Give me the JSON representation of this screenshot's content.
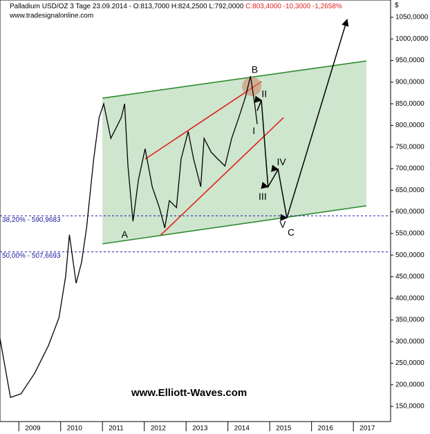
{
  "chart_data": {
    "type": "line",
    "title": "Palladium USD/OZ 3 Tage  23.09.2014 - O:813,7000 H:824,2500 L:792,0000",
    "change_text": "C:803,4000 -10,3000 -1,2658%",
    "source": "www.tradesignalonline.com",
    "unit": "$",
    "watermark": "www.Elliott-Waves.com",
    "x": [
      2008.55,
      2008.8,
      2009.05,
      2009.38,
      2009.71,
      2009.96,
      2010.12,
      2010.21,
      2010.37,
      2010.5,
      2010.62,
      2010.79,
      2010.92,
      2011.03,
      2011.2,
      2011.45,
      2011.53,
      2011.61,
      2011.73,
      2011.86,
      2012.02,
      2012.19,
      2012.36,
      2012.49,
      2012.6,
      2012.77,
      2012.88,
      2013.05,
      2013.18,
      2013.35,
      2013.43,
      2013.6,
      2013.76,
      2013.93,
      2014.09,
      2014.26,
      2014.42,
      2014.54,
      2014.64,
      2014.7
    ],
    "values": [
      307,
      171,
      179,
      227,
      291,
      355,
      451,
      547,
      435,
      483,
      563,
      722,
      818,
      850,
      770,
      818,
      850,
      706,
      578,
      674,
      746,
      658,
      610,
      563,
      626,
      610,
      722,
      786,
      722,
      658,
      770,
      738,
      722,
      706,
      770,
      818,
      866,
      914,
      850,
      803
    ],
    "color": "#000000",
    "xlim": [
      2008.55,
      2017.89
    ],
    "xticks": [
      2009,
      2010,
      2011,
      2012,
      2013,
      2014,
      2015,
      2016,
      2017
    ],
    "ylim": [
      115,
      1090
    ],
    "yticks": [
      {
        "value": 150,
        "label": "150,0000"
      },
      {
        "value": 200,
        "label": "200,0000"
      },
      {
        "value": 250,
        "label": "250,0000"
      },
      {
        "value": 300,
        "label": "300,0000"
      },
      {
        "value": 350,
        "label": "350,0000"
      },
      {
        "value": 400,
        "label": "400,0000"
      },
      {
        "value": 450,
        "label": "450,0000"
      },
      {
        "value": 500,
        "label": "500,0000"
      },
      {
        "value": 550,
        "label": "550,0000"
      },
      {
        "value": 600,
        "label": "600,0000"
      },
      {
        "value": 650,
        "label": "650,0000"
      },
      {
        "value": 700,
        "label": "700,0000"
      },
      {
        "value": 750,
        "label": "750,0000"
      },
      {
        "value": 800,
        "label": "800,0000"
      },
      {
        "value": 850,
        "label": "850,0000"
      },
      {
        "value": 900,
        "label": "900,0000"
      },
      {
        "value": 950,
        "label": "950,0000"
      },
      {
        "value": 1000,
        "label": "1000,0000"
      },
      {
        "value": 1050,
        "label": "1050,0000"
      }
    ],
    "levels": [
      {
        "value": 590.9683,
        "label": "38,20% - 590,9683"
      },
      {
        "value": 507.6693,
        "label": "50,00% - 507,6693"
      }
    ],
    "overlays": [
      {
        "kind": "polygon",
        "color": "rgba(60,150,60,0.25)",
        "x": [
          2011,
          2017.31,
          2017.31,
          2011
        ],
        "values": [
          526,
          614,
          949,
          863
        ]
      },
      {
        "kind": "line",
        "color": "#2e8b2e",
        "x": [
          2011,
          2017.31
        ],
        "values": [
          526,
          614
        ]
      },
      {
        "kind": "line",
        "color": "#2e8b2e",
        "x": [
          2011,
          2017.31
        ],
        "values": [
          863,
          949
        ]
      },
      {
        "kind": "line",
        "color": "#e0201a",
        "x": [
          2012.02,
          2014.8
        ],
        "values": [
          722,
          901
        ]
      },
      {
        "kind": "line",
        "color": "#e0201a",
        "x": [
          2012.39,
          2015.33
        ],
        "values": [
          546,
          818
        ]
      },
      {
        "kind": "arrow",
        "color": "#000000",
        "x": [
          2014.7,
          2014.8,
          2014.96,
          2015.2,
          2015.41,
          2016.85
        ],
        "values": [
          834,
          858,
          658,
          698,
          586,
          1045
        ]
      }
    ],
    "highlight": {
      "x": 2014.57,
      "y": 890,
      "color": "rgba(210,130,100,0.55)"
    },
    "annotations": [
      {
        "text": "A",
        "x": 2011.53,
        "y": 546
      },
      {
        "text": "B",
        "x": 2014.64,
        "y": 927
      },
      {
        "text": "C",
        "x": 2015.51,
        "y": 551
      },
      {
        "text": "I",
        "x": 2014.62,
        "y": 786
      },
      {
        "text": "II",
        "x": 2014.87,
        "y": 871
      },
      {
        "text": "III",
        "x": 2014.83,
        "y": 634
      },
      {
        "text": "IV",
        "x": 2015.28,
        "y": 714
      },
      {
        "text": "V",
        "x": 2015.31,
        "y": 569
      }
    ]
  }
}
